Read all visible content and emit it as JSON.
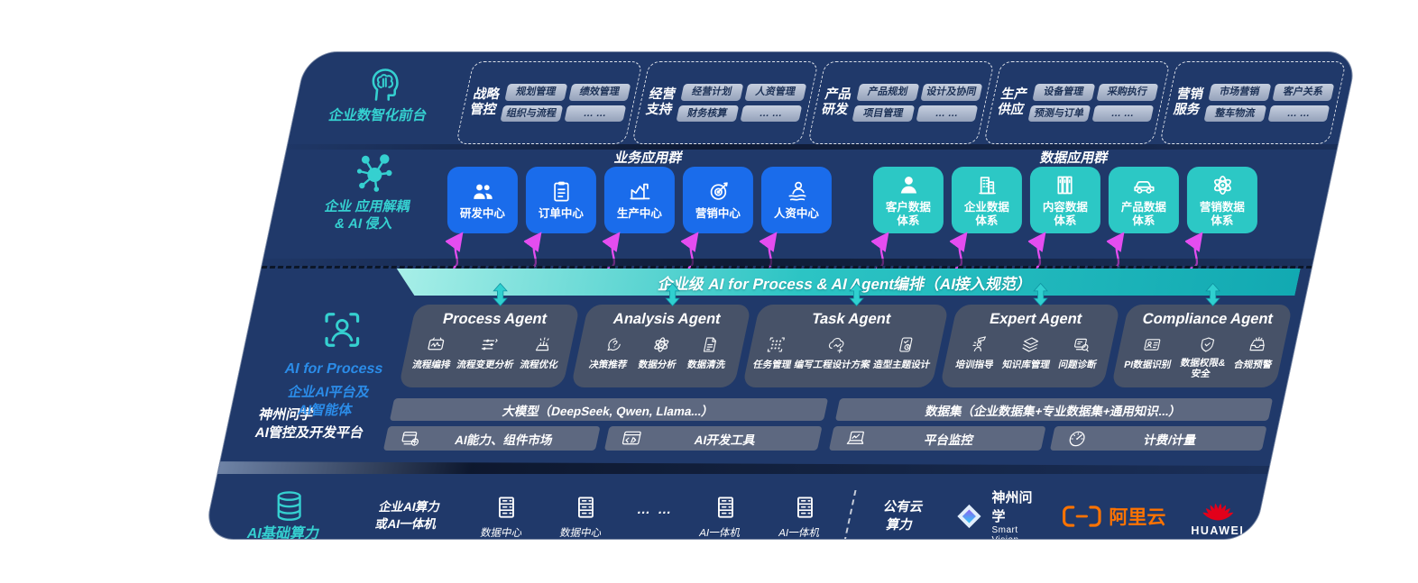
{
  "colors": {
    "panel_navy": "#20396a",
    "accent_teal": "#35d0d0",
    "accent_blue": "#2b8ce8",
    "card_blue": "#1a6ceb",
    "card_teal": "#2cc8c5",
    "banner_teal": "#12a9b2",
    "arrow_magenta": "#e44df0",
    "chip_gray": "#a9b4c9",
    "aliyun_orange": "#ff7300",
    "huawei_red": "#e2001a"
  },
  "front_layer": {
    "label": "企业数智化前台",
    "icon": "brain-icon",
    "groups": [
      {
        "title_lines": [
          "战略",
          "管控"
        ],
        "items": [
          "规划管理",
          "绩效管理",
          "组织与流程",
          "… …"
        ]
      },
      {
        "title_lines": [
          "经营",
          "支持"
        ],
        "items": [
          "经营计划",
          "人资管理",
          "财务核算",
          "… …"
        ]
      },
      {
        "title_lines": [
          "产品",
          "研发"
        ],
        "items": [
          "产品规划",
          "设计及协同",
          "项目管理",
          "… …"
        ]
      },
      {
        "title_lines": [
          "生产",
          "供应"
        ],
        "items": [
          "设备管理",
          "采购执行",
          "预测与订单",
          "… …"
        ]
      },
      {
        "title_lines": [
          "营销",
          "服务"
        ],
        "items": [
          "市场营销",
          "客户关系",
          "整车物流",
          "… …"
        ]
      }
    ]
  },
  "apps_layer": {
    "icon": "molecule-icon",
    "label_lines": [
      "企业 应用解耦",
      "& AI 侵入"
    ],
    "business": {
      "title": "业务应用群",
      "cards": [
        {
          "label": "研发中心",
          "icon": "team-icon"
        },
        {
          "label": "订单中心",
          "icon": "clipboard-icon"
        },
        {
          "label": "生产中心",
          "icon": "factory-icon"
        },
        {
          "label": "营销中心",
          "icon": "target-icon"
        },
        {
          "label": "人资中心",
          "icon": "hr-icon"
        }
      ]
    },
    "data": {
      "title": "数据应用群",
      "cards": [
        {
          "label_lines": [
            "客户数据",
            "体系"
          ],
          "icon": "person-icon"
        },
        {
          "label_lines": [
            "企业数据",
            "体系"
          ],
          "icon": "building-icon"
        },
        {
          "label_lines": [
            "内容数据",
            "体系"
          ],
          "icon": "books-icon"
        },
        {
          "label_lines": [
            "产品数据",
            "体系"
          ],
          "icon": "car-icon"
        },
        {
          "label_lines": [
            "营销数据",
            "体系"
          ],
          "icon": "atom-icon"
        }
      ]
    }
  },
  "ai_layer": {
    "icon": "person-scan-icon",
    "label_lines": [
      "AI for Process",
      "企业AI平台及",
      "AI智能体"
    ],
    "banner": "企业级 AI for Process & AI Agent编排（AI接入规范）",
    "agents": [
      {
        "title": "Process Agent",
        "items": [
          {
            "label": "流程编排",
            "icon": "workflow-icon"
          },
          {
            "label": "流程变更分析",
            "icon": "sliders-icon"
          },
          {
            "label": "流程优化",
            "icon": "optimize-icon"
          }
        ]
      },
      {
        "title": "Analysis Agent",
        "items": [
          {
            "label": "决策推荐",
            "icon": "decision-icon"
          },
          {
            "label": "数据分析",
            "icon": "atom-icon"
          },
          {
            "label": "数据清洗",
            "icon": "doc-clean-icon"
          }
        ]
      },
      {
        "title": "Task Agent",
        "items": [
          {
            "label": "任务管理",
            "icon": "task-grid-icon"
          },
          {
            "label": "编写工程设计方案",
            "icon": "cloud-design-icon"
          },
          {
            "label": "造型主题设计",
            "icon": "theme-design-icon"
          }
        ]
      },
      {
        "title": "Expert Agent",
        "items": [
          {
            "label": "培训指导",
            "icon": "training-icon"
          },
          {
            "label": "知识库管理",
            "icon": "layers-icon"
          },
          {
            "label": "问题诊断",
            "icon": "diagnose-icon"
          }
        ]
      },
      {
        "title": "Compliance Agent",
        "items": [
          {
            "label": "PI数据识别",
            "icon": "id-card-icon"
          },
          {
            "label": "数据权限&安全",
            "icon": "permission-icon"
          },
          {
            "label": "合规预警",
            "icon": "alert-tray-icon"
          }
        ]
      }
    ],
    "platform": {
      "label_lines": [
        "神州问学",
        "AI管控及开发平台"
      ],
      "model_bar": "大模型（DeepSeek, Qwen, Llama...）",
      "dataset_bar": "数据集（企业数据集+专业数据集+通用知识...）",
      "tools": [
        {
          "label": "AI能力、组件市场",
          "icon": "market-icon"
        },
        {
          "label": "AI开发工具",
          "icon": "devtools-icon"
        },
        {
          "label": "平台监控",
          "icon": "monitor-icon"
        },
        {
          "label": "计费/计量",
          "icon": "meter-icon"
        }
      ]
    }
  },
  "compute_layer": {
    "icon": "database-icon",
    "label": "AI基础算力",
    "private_label_lines": [
      "企业AI算力",
      "或AI一体机"
    ],
    "nodes": [
      {
        "label": "数据中心",
        "icon": "server-icon"
      },
      {
        "label": "数据中心",
        "icon": "server-icon"
      },
      {
        "dots": "… …"
      },
      {
        "label": "AI一体机",
        "icon": "server-icon"
      },
      {
        "label": "AI一体机",
        "icon": "server-icon"
      }
    ],
    "public_label_lines": [
      "公有云",
      "算力"
    ],
    "vendors": {
      "smartvision": {
        "name": "神州问学",
        "sub": "Smart Vision",
        "icon": "smartvision-logo"
      },
      "aliyun": {
        "name": "阿里云",
        "icon": "aliyun-logo"
      },
      "huawei": {
        "name": "HUAWEI",
        "icon": "huawei-logo"
      }
    }
  }
}
